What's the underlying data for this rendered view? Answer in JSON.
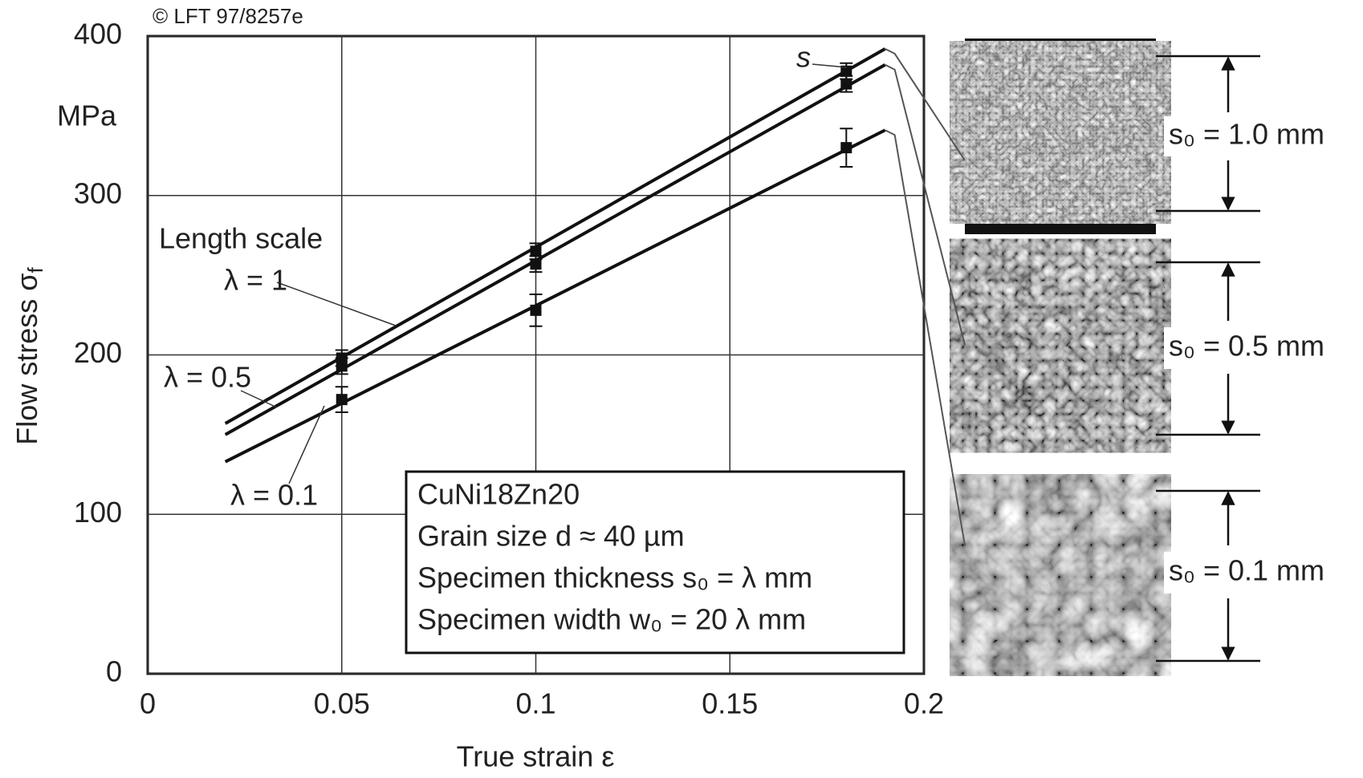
{
  "chart_data": {
    "type": "line",
    "credit": "© LFT 97/8257e",
    "x_label": "True strain ε",
    "y_label": "Flow stress σ",
    "y_label_subscript": "f",
    "y_unit": "MPa",
    "xlim": [
      0,
      0.2
    ],
    "xticks": [
      0,
      0.05,
      0.1,
      0.15,
      0.2
    ],
    "ylim": [
      0,
      400
    ],
    "yticks": [
      0,
      100,
      200,
      300,
      400
    ],
    "grid": true,
    "series_heading": "Length scale",
    "series": [
      {
        "name": "λ = 1",
        "color": "#111111",
        "x": [
          0.02,
          0.19
        ],
        "values": [
          157,
          392
        ],
        "points": {
          "x": [
            0.05,
            0.1,
            0.18
          ],
          "values": [
            198,
            265,
            378
          ],
          "errors": [
            5,
            5,
            5
          ]
        }
      },
      {
        "name": "λ = 0.5",
        "color": "#111111",
        "x": [
          0.02,
          0.19
        ],
        "values": [
          150,
          382
        ],
        "points": {
          "x": [
            0.05,
            0.1,
            0.18
          ],
          "values": [
            193,
            257,
            370
          ],
          "errors": [
            5,
            5,
            5
          ]
        }
      },
      {
        "name": "λ = 0.1",
        "color": "#111111",
        "x": [
          0.02,
          0.19
        ],
        "values": [
          133,
          341
        ],
        "points": {
          "x": [
            0.05,
            0.1,
            0.18
          ],
          "values": [
            172,
            228,
            330
          ],
          "errors": [
            8,
            10,
            12
          ]
        }
      }
    ],
    "error_label": "s",
    "info_box": [
      "CuNi18Zn20",
      "Grain size d ≈ 40 µm",
      "Specimen thickness s₀ = λ mm",
      "Specimen width w₀ = 20 λ mm"
    ],
    "panels": [
      "s₀ = 1.0 mm",
      "s₀ = 0.5 mm",
      "s₀ = 0.1 mm"
    ]
  }
}
